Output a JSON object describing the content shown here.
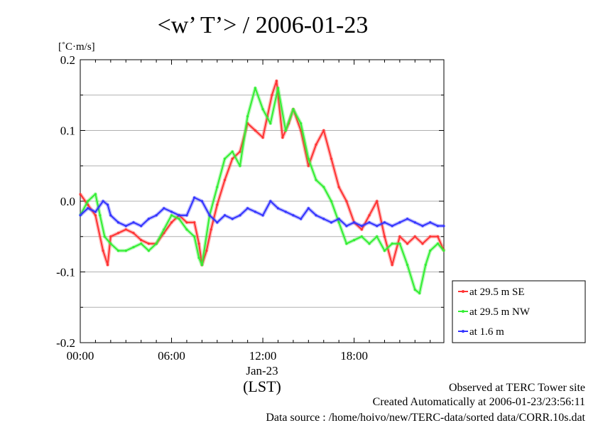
{
  "chart_data": {
    "type": "line",
    "title": "<w’ T’> / 2006-01-23",
    "ylabel": "[˚C·m/s]",
    "xlabel": "(LST)",
    "x_sublabel": "Jan-23",
    "ylim": [
      -0.2,
      0.2
    ],
    "xlim": [
      0,
      23.9
    ],
    "yticks": [
      0.2,
      0.1,
      0.0,
      -0.1,
      -0.2
    ],
    "ytick_labels": [
      "0.2",
      "0.1",
      "0.0",
      "-0.1",
      "-0.2"
    ],
    "xticks": [
      0,
      6,
      12,
      18
    ],
    "xtick_labels": [
      "00:00",
      "06:00",
      "12:00",
      "18:00"
    ],
    "grid": "horizontal",
    "legend_position": "right",
    "series": [
      {
        "name": "at 29.5 m SE",
        "color": "#ff3333",
        "x": [
          0.0,
          0.5,
          1.0,
          1.5,
          1.8,
          2.0,
          2.5,
          3.0,
          3.5,
          4.0,
          4.5,
          5.0,
          5.5,
          6.0,
          6.5,
          7.0,
          7.5,
          7.8,
          8.0,
          8.3,
          8.6,
          9.0,
          9.5,
          10.0,
          10.5,
          11.0,
          11.5,
          12.0,
          12.3,
          12.6,
          12.9,
          13.3,
          13.7,
          14.0,
          14.5,
          15.0,
          15.5,
          16.0,
          16.5,
          17.0,
          17.5,
          18.0,
          18.5,
          19.0,
          19.5,
          20.0,
          20.5,
          21.0,
          21.5,
          22.0,
          22.5,
          23.0,
          23.5,
          23.9
        ],
        "y": [
          0.01,
          -0.005,
          -0.02,
          -0.07,
          -0.09,
          -0.05,
          -0.045,
          -0.04,
          -0.045,
          -0.055,
          -0.06,
          -0.06,
          -0.045,
          -0.03,
          -0.02,
          -0.03,
          -0.03,
          -0.06,
          -0.09,
          -0.07,
          -0.04,
          -0.005,
          0.03,
          0.06,
          0.07,
          0.11,
          0.1,
          0.09,
          0.12,
          0.15,
          0.17,
          0.09,
          0.11,
          0.13,
          0.1,
          0.05,
          0.08,
          0.1,
          0.06,
          0.02,
          0.0,
          -0.03,
          -0.04,
          -0.02,
          0.0,
          -0.05,
          -0.09,
          -0.05,
          -0.06,
          -0.05,
          -0.06,
          -0.05,
          -0.05,
          -0.07
        ]
      },
      {
        "name": "at 29.5 m NW",
        "color": "#33ee33",
        "x": [
          0.0,
          0.5,
          1.0,
          1.3,
          1.6,
          2.0,
          2.5,
          3.0,
          3.5,
          4.0,
          4.5,
          5.0,
          5.5,
          6.0,
          6.5,
          7.0,
          7.5,
          7.8,
          8.0,
          8.5,
          9.0,
          9.5,
          10.0,
          10.5,
          11.0,
          11.5,
          12.0,
          12.5,
          13.0,
          13.5,
          14.0,
          14.5,
          15.0,
          15.5,
          16.0,
          16.5,
          17.0,
          17.5,
          18.0,
          18.5,
          19.0,
          19.5,
          20.0,
          20.5,
          21.0,
          21.5,
          22.0,
          22.3,
          22.7,
          23.0,
          23.5,
          23.9
        ],
        "y": [
          -0.02,
          0.0,
          0.01,
          -0.02,
          -0.05,
          -0.06,
          -0.07,
          -0.07,
          -0.065,
          -0.06,
          -0.07,
          -0.06,
          -0.04,
          -0.02,
          -0.025,
          -0.04,
          -0.05,
          -0.08,
          -0.09,
          -0.02,
          0.02,
          0.06,
          0.07,
          0.05,
          0.12,
          0.16,
          0.13,
          0.11,
          0.16,
          0.1,
          0.13,
          0.11,
          0.06,
          0.03,
          0.02,
          0.0,
          -0.03,
          -0.06,
          -0.055,
          -0.05,
          -0.06,
          -0.05,
          -0.07,
          -0.06,
          -0.06,
          -0.09,
          -0.125,
          -0.13,
          -0.09,
          -0.07,
          -0.06,
          -0.07
        ]
      },
      {
        "name": "at 1.6 m",
        "color": "#3333ff",
        "x": [
          0.0,
          0.5,
          1.0,
          1.5,
          1.8,
          2.0,
          2.5,
          3.0,
          3.5,
          4.0,
          4.5,
          5.0,
          5.5,
          6.0,
          6.5,
          7.0,
          7.5,
          8.0,
          8.5,
          9.0,
          9.5,
          10.0,
          10.5,
          11.0,
          11.5,
          12.0,
          12.5,
          13.0,
          13.5,
          14.0,
          14.5,
          15.0,
          15.5,
          16.0,
          16.5,
          17.0,
          17.5,
          18.0,
          18.5,
          19.0,
          19.5,
          20.0,
          20.5,
          21.0,
          21.5,
          22.0,
          22.5,
          23.0,
          23.5,
          23.9
        ],
        "y": [
          -0.02,
          -0.01,
          -0.015,
          0.0,
          -0.005,
          -0.02,
          -0.03,
          -0.035,
          -0.03,
          -0.035,
          -0.025,
          -0.02,
          -0.01,
          -0.015,
          -0.02,
          -0.02,
          0.005,
          0.0,
          -0.02,
          -0.03,
          -0.02,
          -0.025,
          -0.02,
          -0.01,
          -0.015,
          -0.02,
          0.0,
          -0.01,
          -0.015,
          -0.02,
          -0.025,
          -0.01,
          -0.02,
          -0.025,
          -0.03,
          -0.025,
          -0.035,
          -0.03,
          -0.035,
          -0.03,
          -0.035,
          -0.03,
          -0.035,
          -0.03,
          -0.025,
          -0.03,
          -0.035,
          -0.03,
          -0.035,
          -0.035
        ]
      }
    ]
  },
  "footer": {
    "line1": "Observed at TERC Tower site",
    "line2": "Created Automatically at 2006-01-23/23:56:11",
    "line3": "Data source : /home/hoivo/new/TERC-data/sorted  data/CORR.10s.dat"
  }
}
